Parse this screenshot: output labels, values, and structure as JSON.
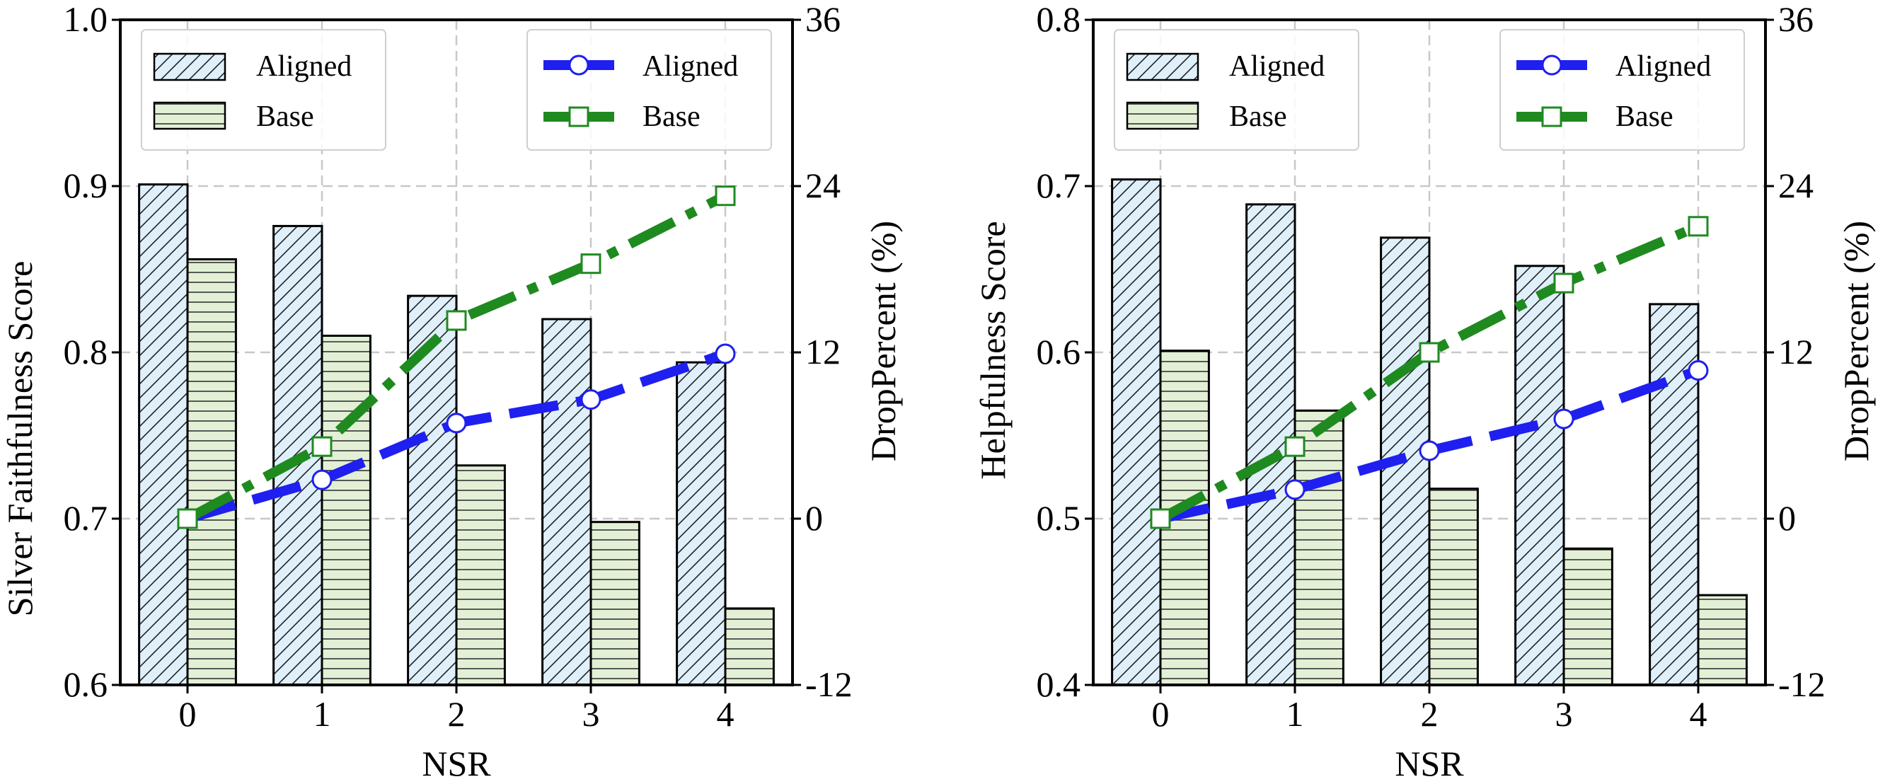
{
  "chart_data": [
    {
      "type": "bar",
      "xlabel": "NSR",
      "ylabel": "Silver Faithfulness Score",
      "y2label": "DropPercent (%)",
      "categories": [
        "0",
        "1",
        "2",
        "3",
        "4"
      ],
      "ylim": [
        0.6,
        1.0
      ],
      "yticks": [
        "0.6",
        "0.7",
        "0.8",
        "0.9",
        "1.0"
      ],
      "y2lim": [
        -12,
        36
      ],
      "y2ticks": [
        "-12",
        "0",
        "12",
        "24",
        "36"
      ],
      "grid": true,
      "bars": [
        {
          "name": "Aligned",
          "values": [
            0.901,
            0.876,
            0.834,
            0.82,
            0.794
          ]
        },
        {
          "name": "Base",
          "values": [
            0.856,
            0.81,
            0.732,
            0.698,
            0.646
          ]
        }
      ],
      "lines": [
        {
          "name": "Aligned",
          "values": [
            0.0,
            2.8,
            6.9,
            8.6,
            11.9
          ]
        },
        {
          "name": "Base",
          "values": [
            0.0,
            5.2,
            14.3,
            18.4,
            23.3
          ]
        }
      ],
      "legend_left": "top-left",
      "legend_right": "top-right"
    },
    {
      "type": "bar",
      "xlabel": "NSR",
      "ylabel": "Helpfulness Score",
      "y2label": "DropPercent (%)",
      "categories": [
        "0",
        "1",
        "2",
        "3",
        "4"
      ],
      "ylim": [
        0.4,
        0.8
      ],
      "yticks": [
        "0.4",
        "0.5",
        "0.6",
        "0.7",
        "0.8"
      ],
      "y2lim": [
        -12,
        36
      ],
      "y2ticks": [
        "-12",
        "0",
        "12",
        "24",
        "36"
      ],
      "grid": true,
      "bars": [
        {
          "name": "Aligned",
          "values": [
            0.704,
            0.689,
            0.669,
            0.652,
            0.629
          ]
        },
        {
          "name": "Base",
          "values": [
            0.601,
            0.565,
            0.518,
            0.482,
            0.454
          ]
        }
      ],
      "lines": [
        {
          "name": "Aligned",
          "values": [
            0.0,
            2.1,
            4.9,
            7.2,
            10.7
          ]
        },
        {
          "name": "Base",
          "values": [
            0.0,
            5.2,
            12.0,
            17.0,
            21.1
          ]
        }
      ],
      "legend_left": "top-left",
      "legend_right": "top-right"
    }
  ],
  "style": {
    "aligned_bar_fill": "#dff0fa",
    "base_bar_fill": "#e3f0d6",
    "aligned_line_color": "#1f1ff0",
    "base_line_color": "#1f8a1f",
    "grid_color": "#c8c8c8"
  }
}
